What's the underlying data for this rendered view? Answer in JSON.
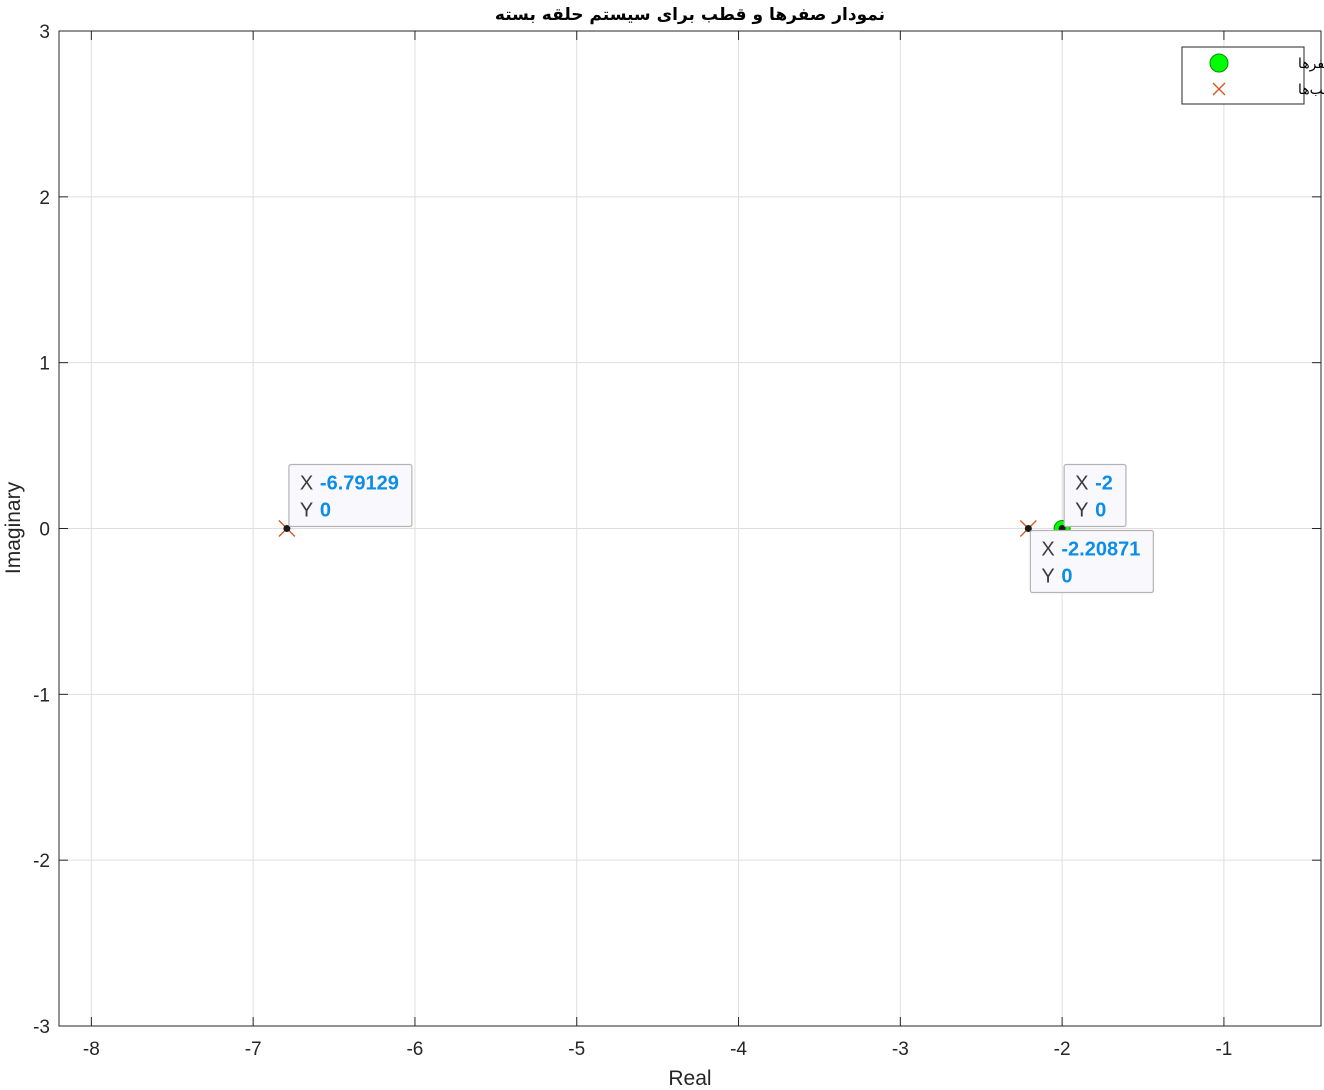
{
  "chart_data": {
    "type": "scatter",
    "title": "نمودار صفرها و قطب برای سیستم حلقه بسته",
    "xlabel": "Real",
    "ylabel": "Imaginary",
    "xlim": [
      -8.2,
      -0.4
    ],
    "ylim": [
      -3,
      3
    ],
    "xticks": [
      -8,
      -7,
      -6,
      -5,
      -4,
      -3,
      -2,
      -1
    ],
    "yticks": [
      -3,
      -2,
      -1,
      0,
      1,
      2,
      3
    ],
    "grid": true,
    "legend_position": "top-right",
    "series": [
      {
        "name": "صفرها",
        "marker": "circle",
        "color": "#00ff00",
        "points": [
          {
            "x": -2,
            "y": 0
          }
        ]
      },
      {
        "name": "قطب‌ها",
        "marker": "x",
        "color": "#d95319",
        "points": [
          {
            "x": -6.79129,
            "y": 0
          },
          {
            "x": -2.20871,
            "y": 0
          }
        ]
      }
    ],
    "datatips": [
      {
        "x_label": "X",
        "y_label": "Y",
        "x": "-6.79129",
        "y": "0",
        "anchor": "upper-right"
      },
      {
        "x_label": "X",
        "y_label": "Y",
        "x": "-2",
        "y": "0",
        "anchor": "upper-right"
      },
      {
        "x_label": "X",
        "y_label": "Y",
        "x": "-2.20871",
        "y": "0",
        "anchor": "lower-right"
      }
    ]
  }
}
